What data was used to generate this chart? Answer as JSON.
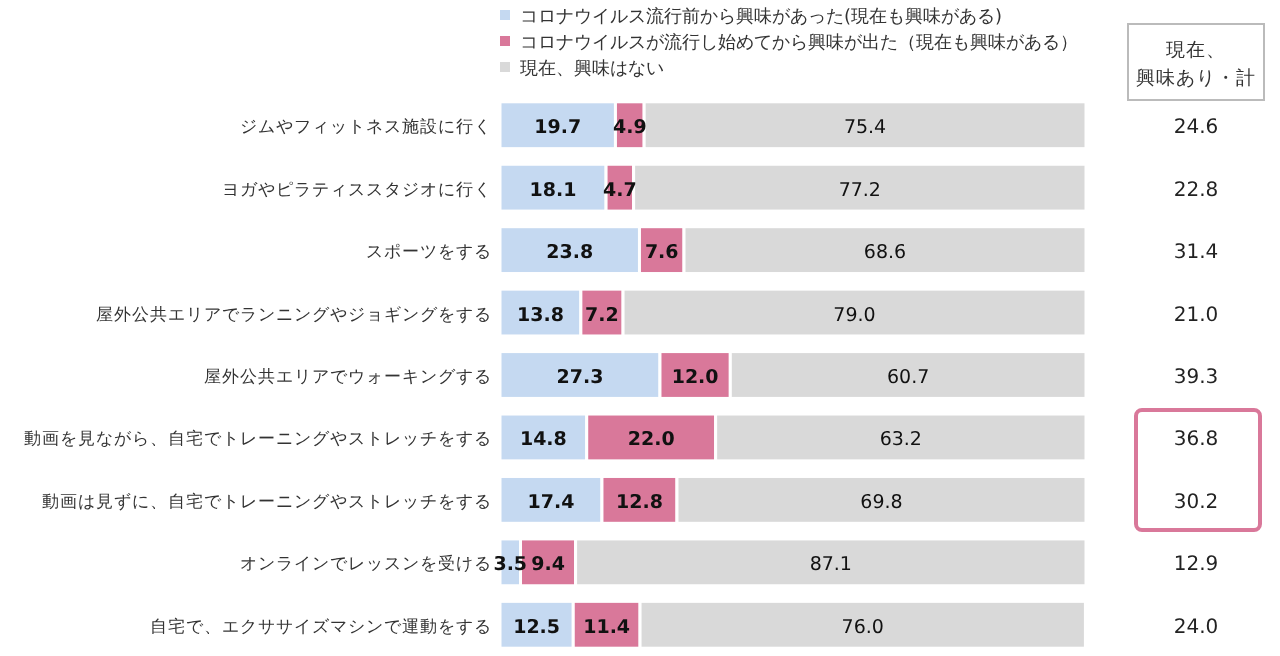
{
  "chart_data": {
    "type": "bar",
    "orientation": "horizontal",
    "stacked": true,
    "legend": "top",
    "categories": [
      "ジムやフィットネス施設に行く",
      "ヨガやピラティススタジオに行く",
      "スポーツをする",
      "屋外公共エリアでランニングやジョギングをする",
      "屋外公共エリアでウォーキングする",
      "動画を見ながら、自宅でトレーニングやストレッチをする",
      "動画は見ずに、自宅でトレーニングやストレッチをする",
      "オンラインでレッスンを受ける",
      "自宅で、エクササイズマシンで運動をする"
    ],
    "series": [
      {
        "name": "コロナウイルス流行前から興味があった(現在も興味がある)",
        "color": "#c5d9f1",
        "values": [
          19.7,
          18.1,
          23.8,
          13.8,
          27.3,
          14.8,
          17.4,
          3.5,
          12.5
        ],
        "value_labels": [
          "19.7",
          "18.1",
          "23.8",
          "13.8",
          "27.3",
          "14.8",
          "17.4",
          "3.5",
          "12.5"
        ]
      },
      {
        "name": "コロナウイルスが流行し始めてから興味が出た（現在も興味がある）",
        "color": "#d9789a",
        "values": [
          4.9,
          4.7,
          7.6,
          7.2,
          12.0,
          22.0,
          12.8,
          9.4,
          11.4
        ],
        "value_labels": [
          "4.9",
          "4.7",
          "7.6",
          "7.2",
          "12.0",
          "22.0",
          "12.8",
          "9.4",
          "11.4"
        ]
      },
      {
        "name": "現在、興味はない",
        "color": "#d9d9d9",
        "values": [
          75.4,
          77.2,
          68.6,
          79.0,
          60.7,
          63.2,
          69.8,
          87.1,
          76.0
        ],
        "value_labels": [
          "75.4",
          "77.2",
          "68.6",
          "79.0",
          "60.7",
          "63.2",
          "69.8",
          "87.1",
          "76.0"
        ]
      }
    ],
    "annotations": [
      "現在、興味あり・計",
      "24.6",
      "22.8",
      "31.4",
      "21.0",
      "39.3",
      "36.8",
      "30.2",
      "12.9",
      "24.0"
    ]
  }
}
